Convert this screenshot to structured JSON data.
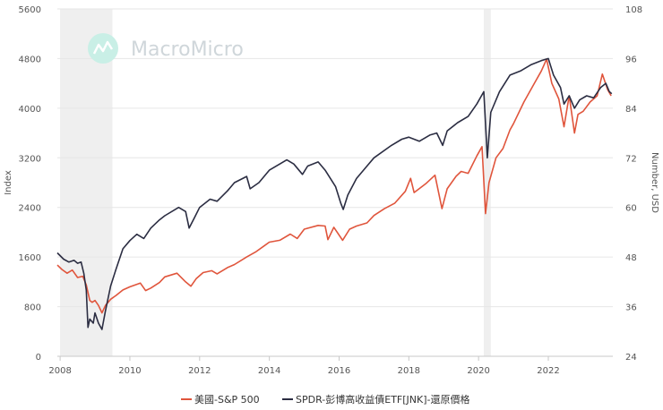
{
  "watermark": {
    "text": "MacroMicro"
  },
  "chart_data": {
    "type": "line",
    "x_ticks": [
      "2008",
      "2010",
      "2012",
      "2014",
      "2016",
      "2018",
      "2020",
      "2022"
    ],
    "y_left": {
      "label": "Index",
      "ylim": [
        0,
        5600
      ],
      "ticks": [
        "0",
        "800",
        "1600",
        "2400",
        "3200",
        "4000",
        "4800",
        "5600"
      ]
    },
    "y_right": {
      "label": "Number, USD",
      "ylim": [
        24,
        108
      ],
      "ticks": [
        "24",
        "36",
        "48",
        "60",
        "72",
        "84",
        "96",
        "108"
      ]
    },
    "recession_shading": [
      {
        "start": 2008.0,
        "end": 2009.5
      },
      {
        "start": 2020.15,
        "end": 2020.35
      }
    ],
    "grid": "horizontal",
    "legend_position": "bottom-center",
    "series": [
      {
        "name": "美國-S&P 500",
        "axis": "left",
        "color": "#e0553c",
        "points": [
          [
            2007.92,
            1470
          ],
          [
            2008.05,
            1400
          ],
          [
            2008.2,
            1340
          ],
          [
            2008.35,
            1390
          ],
          [
            2008.5,
            1270
          ],
          [
            2008.65,
            1290
          ],
          [
            2008.75,
            1150
          ],
          [
            2008.85,
            900
          ],
          [
            2008.92,
            870
          ],
          [
            2009.0,
            900
          ],
          [
            2009.1,
            820
          ],
          [
            2009.2,
            700
          ],
          [
            2009.3,
            820
          ],
          [
            2009.45,
            920
          ],
          [
            2009.6,
            980
          ],
          [
            2009.8,
            1070
          ],
          [
            2010.0,
            1120
          ],
          [
            2010.3,
            1180
          ],
          [
            2010.45,
            1060
          ],
          [
            2010.6,
            1100
          ],
          [
            2010.85,
            1190
          ],
          [
            2011.0,
            1280
          ],
          [
            2011.35,
            1340
          ],
          [
            2011.6,
            1200
          ],
          [
            2011.75,
            1130
          ],
          [
            2011.9,
            1250
          ],
          [
            2012.1,
            1350
          ],
          [
            2012.35,
            1380
          ],
          [
            2012.5,
            1330
          ],
          [
            2012.8,
            1430
          ],
          [
            2013.0,
            1480
          ],
          [
            2013.35,
            1600
          ],
          [
            2013.6,
            1680
          ],
          [
            2013.85,
            1780
          ],
          [
            2014.0,
            1840
          ],
          [
            2014.3,
            1870
          ],
          [
            2014.6,
            1970
          ],
          [
            2014.8,
            1900
          ],
          [
            2015.0,
            2050
          ],
          [
            2015.4,
            2110
          ],
          [
            2015.6,
            2100
          ],
          [
            2015.68,
            1880
          ],
          [
            2015.85,
            2080
          ],
          [
            2016.1,
            1870
          ],
          [
            2016.3,
            2050
          ],
          [
            2016.5,
            2100
          ],
          [
            2016.8,
            2150
          ],
          [
            2017.0,
            2270
          ],
          [
            2017.3,
            2380
          ],
          [
            2017.6,
            2470
          ],
          [
            2017.9,
            2660
          ],
          [
            2018.05,
            2870
          ],
          [
            2018.15,
            2640
          ],
          [
            2018.5,
            2790
          ],
          [
            2018.75,
            2920
          ],
          [
            2018.95,
            2380
          ],
          [
            2019.1,
            2700
          ],
          [
            2019.35,
            2900
          ],
          [
            2019.5,
            2980
          ],
          [
            2019.7,
            2950
          ],
          [
            2019.95,
            3230
          ],
          [
            2020.1,
            3380
          ],
          [
            2020.2,
            2300
          ],
          [
            2020.3,
            2800
          ],
          [
            2020.5,
            3200
          ],
          [
            2020.7,
            3350
          ],
          [
            2020.9,
            3650
          ],
          [
            2021.0,
            3750
          ],
          [
            2021.3,
            4100
          ],
          [
            2021.6,
            4400
          ],
          [
            2021.8,
            4600
          ],
          [
            2021.95,
            4790
          ],
          [
            2022.1,
            4400
          ],
          [
            2022.3,
            4150
          ],
          [
            2022.45,
            3700
          ],
          [
            2022.6,
            4200
          ],
          [
            2022.75,
            3600
          ],
          [
            2022.85,
            3900
          ],
          [
            2023.0,
            3950
          ],
          [
            2023.2,
            4100
          ],
          [
            2023.4,
            4200
          ],
          [
            2023.55,
            4550
          ],
          [
            2023.7,
            4300
          ],
          [
            2023.8,
            4200
          ]
        ]
      },
      {
        "name": "SPDR-彭博高收益債ETF[JNK]-還原價格",
        "axis": "right",
        "color": "#2b2d42",
        "points": [
          [
            2007.92,
            49
          ],
          [
            2008.1,
            47.5
          ],
          [
            2008.25,
            46.8
          ],
          [
            2008.4,
            47.2
          ],
          [
            2008.5,
            46.5
          ],
          [
            2008.6,
            46.8
          ],
          [
            2008.68,
            44
          ],
          [
            2008.75,
            40
          ],
          [
            2008.8,
            31
          ],
          [
            2008.85,
            33
          ],
          [
            2008.95,
            32
          ],
          [
            2009.0,
            34.5
          ],
          [
            2009.1,
            32
          ],
          [
            2009.2,
            30.5
          ],
          [
            2009.3,
            35
          ],
          [
            2009.45,
            41
          ],
          [
            2009.6,
            45
          ],
          [
            2009.8,
            50
          ],
          [
            2010.0,
            52
          ],
          [
            2010.2,
            53.5
          ],
          [
            2010.4,
            52.5
          ],
          [
            2010.6,
            55
          ],
          [
            2010.85,
            57
          ],
          [
            2011.0,
            58
          ],
          [
            2011.4,
            60
          ],
          [
            2011.6,
            59
          ],
          [
            2011.7,
            55
          ],
          [
            2011.85,
            57.5
          ],
          [
            2012.0,
            60
          ],
          [
            2012.3,
            62
          ],
          [
            2012.5,
            61.5
          ],
          [
            2012.8,
            64
          ],
          [
            2013.0,
            66
          ],
          [
            2013.35,
            67.5
          ],
          [
            2013.45,
            64.5
          ],
          [
            2013.7,
            66
          ],
          [
            2014.0,
            69
          ],
          [
            2014.5,
            71.5
          ],
          [
            2014.7,
            70.5
          ],
          [
            2014.95,
            68
          ],
          [
            2015.1,
            70
          ],
          [
            2015.4,
            71
          ],
          [
            2015.6,
            69
          ],
          [
            2015.9,
            65
          ],
          [
            2016.05,
            61
          ],
          [
            2016.12,
            59.5
          ],
          [
            2016.25,
            63
          ],
          [
            2016.5,
            67
          ],
          [
            2016.8,
            70
          ],
          [
            2017.0,
            72
          ],
          [
            2017.5,
            75
          ],
          [
            2017.8,
            76.5
          ],
          [
            2018.0,
            77
          ],
          [
            2018.3,
            76
          ],
          [
            2018.6,
            77.5
          ],
          [
            2018.8,
            78
          ],
          [
            2018.97,
            75
          ],
          [
            2019.1,
            78.5
          ],
          [
            2019.4,
            80.5
          ],
          [
            2019.7,
            82
          ],
          [
            2019.95,
            85
          ],
          [
            2020.15,
            88
          ],
          [
            2020.22,
            77
          ],
          [
            2020.25,
            72
          ],
          [
            2020.35,
            83
          ],
          [
            2020.6,
            88
          ],
          [
            2020.9,
            92
          ],
          [
            2021.2,
            93
          ],
          [
            2021.5,
            94.5
          ],
          [
            2021.8,
            95.5
          ],
          [
            2022.0,
            96
          ],
          [
            2022.15,
            92
          ],
          [
            2022.35,
            89
          ],
          [
            2022.45,
            85
          ],
          [
            2022.6,
            87
          ],
          [
            2022.75,
            84
          ],
          [
            2022.9,
            86
          ],
          [
            2023.1,
            87
          ],
          [
            2023.3,
            86.5
          ],
          [
            2023.5,
            89
          ],
          [
            2023.65,
            90
          ],
          [
            2023.75,
            88
          ],
          [
            2023.82,
            87.5
          ]
        ]
      }
    ]
  }
}
